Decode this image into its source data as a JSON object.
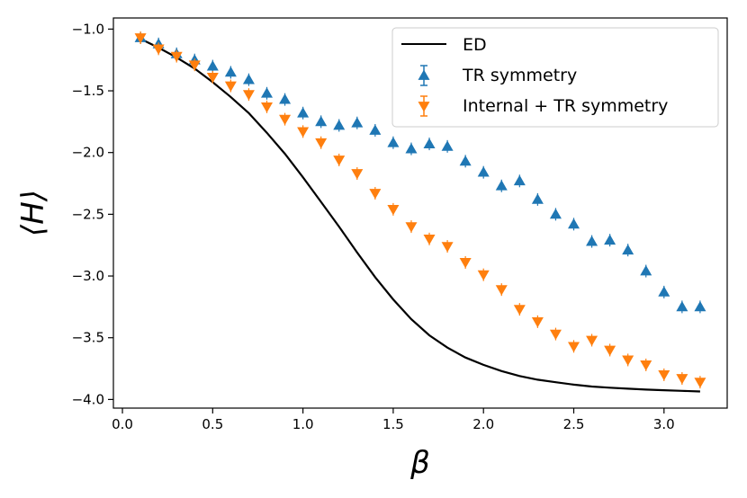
{
  "chart_data": {
    "type": "scatter",
    "title": "",
    "xlabel": "β",
    "ylabel": "⟨H⟩",
    "xlim": [
      -0.05,
      3.35
    ],
    "ylim": [
      -4.07,
      -0.91
    ],
    "xticks": [
      0.0,
      0.5,
      1.0,
      1.5,
      2.0,
      2.5,
      3.0
    ],
    "xtick_labels": [
      "0.0",
      "0.5",
      "1.0",
      "1.5",
      "2.0",
      "2.5",
      "3.0"
    ],
    "yticks": [
      -1.0,
      -1.5,
      -2.0,
      -2.5,
      -3.0,
      -3.5,
      -4.0
    ],
    "ytick_labels": [
      "−1.0",
      "−1.5",
      "−2.0",
      "−2.5",
      "−3.0",
      "−3.5",
      "−4.0"
    ],
    "grid": false,
    "legend_position": "top-right",
    "series": [
      {
        "name": "ED",
        "kind": "line",
        "color": "#000000",
        "x": [
          0.1,
          0.2,
          0.3,
          0.4,
          0.5,
          0.6,
          0.7,
          0.8,
          0.9,
          1.0,
          1.1,
          1.2,
          1.3,
          1.4,
          1.5,
          1.6,
          1.7,
          1.8,
          1.9,
          2.0,
          2.1,
          2.2,
          2.3,
          2.4,
          2.5,
          2.6,
          2.7,
          2.8,
          2.9,
          3.0,
          3.1,
          3.2
        ],
        "y": [
          -1.08,
          -1.15,
          -1.23,
          -1.32,
          -1.43,
          -1.55,
          -1.68,
          -1.84,
          -2.01,
          -2.2,
          -2.4,
          -2.6,
          -2.81,
          -3.01,
          -3.19,
          -3.35,
          -3.48,
          -3.58,
          -3.66,
          -3.72,
          -3.77,
          -3.81,
          -3.84,
          -3.86,
          -3.88,
          -3.895,
          -3.905,
          -3.913,
          -3.92,
          -3.925,
          -3.93,
          -3.935
        ]
      },
      {
        "name": "TR symmetry",
        "kind": "marker",
        "marker": "triangle-up",
        "color": "#1f77b4",
        "x": [
          0.1,
          0.2,
          0.3,
          0.4,
          0.5,
          0.6,
          0.7,
          0.8,
          0.9,
          1.0,
          1.1,
          1.2,
          1.3,
          1.4,
          1.5,
          1.6,
          1.7,
          1.8,
          1.9,
          2.0,
          2.1,
          2.2,
          2.3,
          2.4,
          2.5,
          2.6,
          2.7,
          2.8,
          2.9,
          3.0,
          3.1,
          3.2
        ],
        "y": [
          -1.07,
          -1.12,
          -1.2,
          -1.25,
          -1.3,
          -1.35,
          -1.41,
          -1.52,
          -1.57,
          -1.68,
          -1.75,
          -1.78,
          -1.76,
          -1.82,
          -1.92,
          -1.97,
          -1.93,
          -1.95,
          -2.07,
          -2.16,
          -2.27,
          -2.23,
          -2.38,
          -2.5,
          -2.58,
          -2.72,
          -2.71,
          -2.79,
          -2.96,
          -3.13,
          -3.25,
          -3.25
        ]
      },
      {
        "name": "Internal + TR symmetry",
        "kind": "marker",
        "marker": "triangle-down",
        "color": "#ff7f0e",
        "x": [
          0.1,
          0.2,
          0.3,
          0.4,
          0.5,
          0.6,
          0.7,
          0.8,
          0.9,
          1.0,
          1.1,
          1.2,
          1.3,
          1.4,
          1.5,
          1.6,
          1.7,
          1.8,
          1.9,
          2.0,
          2.1,
          2.2,
          2.3,
          2.4,
          2.5,
          2.6,
          2.7,
          2.8,
          2.9,
          3.0,
          3.1,
          3.2
        ],
        "y": [
          -1.07,
          -1.16,
          -1.22,
          -1.29,
          -1.39,
          -1.46,
          -1.53,
          -1.63,
          -1.73,
          -1.83,
          -1.92,
          -2.06,
          -2.17,
          -2.33,
          -2.46,
          -2.6,
          -2.7,
          -2.76,
          -2.89,
          -2.99,
          -3.11,
          -3.27,
          -3.37,
          -3.47,
          -3.57,
          -3.52,
          -3.6,
          -3.68,
          -3.72,
          -3.8,
          -3.83,
          -3.86
        ]
      }
    ]
  }
}
